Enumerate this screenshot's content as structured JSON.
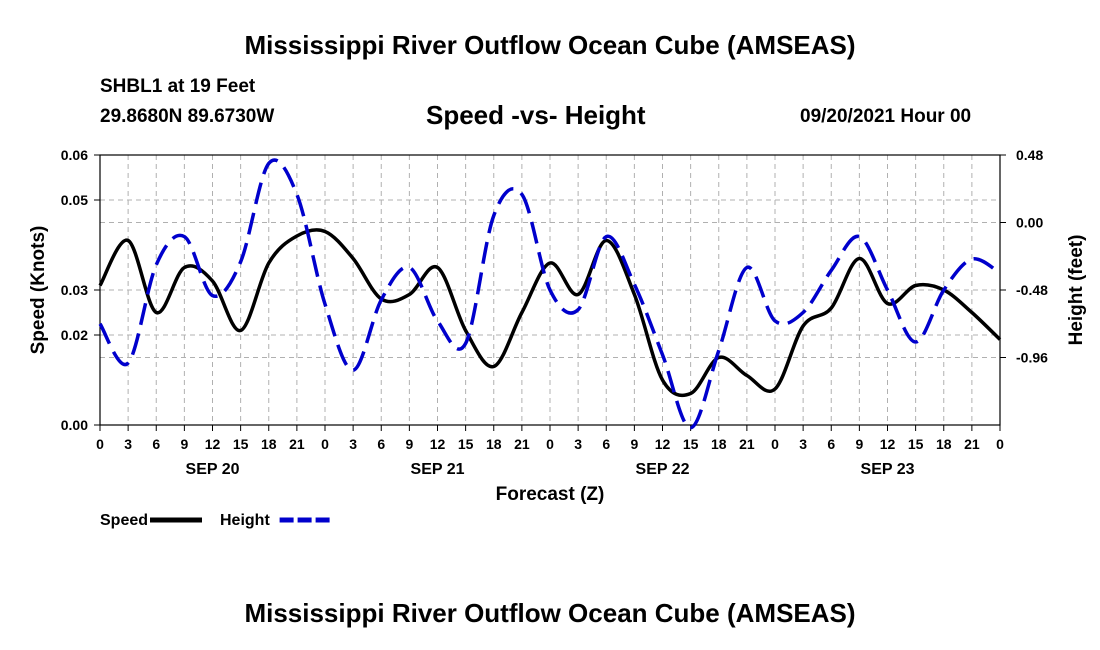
{
  "header": {
    "title": "Mississippi River Outflow Ocean Cube (AMSEAS)",
    "station": "SHBL1 at 19 Feet",
    "coords": "29.8680N  89.6730W",
    "subtitle": "Speed -vs- Height",
    "date": "09/20/2021 Hour 00"
  },
  "footer": {
    "title": "Mississippi River Outflow Ocean Cube (AMSEAS)"
  },
  "chart_data": {
    "type": "line",
    "xlabel": "Forecast (Z)",
    "ylabel_left": "Speed (Knots)",
    "ylabel_right": "Height (feet)",
    "xlim": [
      0,
      96
    ],
    "x_tick_labels": [
      "0",
      "3",
      "6",
      "9",
      "12",
      "15",
      "18",
      "21",
      "0",
      "3",
      "6",
      "9",
      "12",
      "15",
      "18",
      "21",
      "0",
      "3",
      "6",
      "9",
      "12",
      "15",
      "18",
      "21",
      "0",
      "3",
      "6",
      "9",
      "12",
      "15",
      "18",
      "21",
      "0"
    ],
    "day_labels": [
      "SEP 20",
      "SEP 21",
      "SEP 22",
      "SEP 23"
    ],
    "y_left": {
      "range": [
        0,
        0.06
      ],
      "ticks": [
        0.0,
        0.02,
        0.03,
        0.05,
        0.06
      ]
    },
    "y_right": {
      "range": [
        -1.44,
        0.48
      ],
      "ticks": [
        0.48,
        0.0,
        -0.48,
        -0.96
      ]
    },
    "legend": {
      "position": "bottom-left"
    },
    "series": [
      {
        "name": "Speed",
        "axis": "left",
        "color": "#000000",
        "style": "solid",
        "x": [
          0,
          3,
          6,
          9,
          12,
          15,
          18,
          21,
          24,
          27,
          30,
          33,
          36,
          39,
          42,
          45,
          48,
          51,
          54,
          57,
          60,
          63,
          66,
          69,
          72,
          75,
          78,
          81,
          84,
          87,
          90,
          93,
          96
        ],
        "values": [
          0.031,
          0.041,
          0.025,
          0.035,
          0.032,
          0.021,
          0.036,
          0.042,
          0.043,
          0.037,
          0.028,
          0.029,
          0.035,
          0.021,
          0.013,
          0.025,
          0.036,
          0.029,
          0.041,
          0.029,
          0.01,
          0.007,
          0.015,
          0.011,
          0.008,
          0.022,
          0.026,
          0.037,
          0.027,
          0.031,
          0.03,
          0.025,
          0.019
        ]
      },
      {
        "name": "Height",
        "axis": "right",
        "color": "#0000cc",
        "style": "dashed",
        "x": [
          0,
          3,
          6,
          9,
          12,
          15,
          18,
          21,
          24,
          27,
          30,
          33,
          36,
          39,
          42,
          45,
          48,
          51,
          54,
          57,
          60,
          63,
          66,
          69,
          72,
          75,
          78,
          81,
          84,
          87,
          90,
          93,
          96
        ],
        "values": [
          -0.72,
          -1.0,
          -0.3,
          -0.1,
          -0.52,
          -0.28,
          0.42,
          0.2,
          -0.58,
          -1.05,
          -0.55,
          -0.32,
          -0.7,
          -0.86,
          0.05,
          0.2,
          -0.48,
          -0.62,
          -0.1,
          -0.44,
          -0.94,
          -1.46,
          -0.91,
          -0.32,
          -0.7,
          -0.64,
          -0.34,
          -0.1,
          -0.48,
          -0.85,
          -0.48,
          -0.26,
          -0.36
        ]
      }
    ]
  }
}
